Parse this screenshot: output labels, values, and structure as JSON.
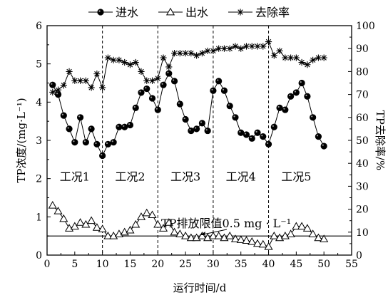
{
  "chart_data": {
    "type": "line",
    "xlabel": "运行时间/d",
    "ylabel_left": "TP浓度/(mg·L⁻¹)",
    "ylabel_right": "TP去除率/%",
    "xlim": [
      0,
      55
    ],
    "ylim_left": [
      0,
      6
    ],
    "ylim_right": [
      0,
      100
    ],
    "xticks": [
      0,
      5,
      10,
      15,
      20,
      25,
      30,
      35,
      40,
      45,
      50,
      55
    ],
    "yticks_left": [
      0,
      1,
      2,
      3,
      4,
      5,
      6
    ],
    "yticks_right": [
      0,
      10,
      20,
      30,
      40,
      50,
      60,
      70,
      80,
      90,
      100
    ],
    "legend": {
      "position": "top",
      "entries": [
        "进水",
        "出水",
        "去除率"
      ]
    },
    "series": [
      {
        "name": "进水",
        "axis": "left",
        "marker": "filled-circle",
        "x": [
          1,
          2,
          3,
          4,
          5,
          6,
          7,
          8,
          9,
          10,
          11,
          12,
          13,
          14,
          15,
          16,
          17,
          18,
          19,
          20,
          21,
          22,
          23,
          24,
          25,
          26,
          27,
          28,
          29,
          30,
          31,
          32,
          33,
          34,
          35,
          36,
          37,
          38,
          39,
          40,
          41,
          42,
          43,
          44,
          45,
          46,
          47,
          48,
          49,
          50
        ],
        "values": [
          4.45,
          4.2,
          3.65,
          3.3,
          2.95,
          3.6,
          2.95,
          3.3,
          2.9,
          2.6,
          2.9,
          2.95,
          3.35,
          3.35,
          3.4,
          3.85,
          4.25,
          4.35,
          4.1,
          3.8,
          4.45,
          4.75,
          4.55,
          3.95,
          3.55,
          3.25,
          3.3,
          3.45,
          3.25,
          4.3,
          4.55,
          4.3,
          3.9,
          3.6,
          3.2,
          3.15,
          3.05,
          3.2,
          3.1,
          2.9,
          3.35,
          3.85,
          3.8,
          4.15,
          4.25,
          4.5,
          4.15,
          3.6,
          3.1,
          2.85
        ]
      },
      {
        "name": "出水",
        "axis": "left",
        "marker": "open-triangle",
        "x": [
          1,
          2,
          3,
          4,
          5,
          6,
          7,
          8,
          9,
          10,
          11,
          12,
          13,
          14,
          15,
          16,
          17,
          18,
          19,
          20,
          21,
          22,
          23,
          24,
          25,
          26,
          27,
          28,
          29,
          30,
          31,
          32,
          33,
          34,
          35,
          36,
          37,
          38,
          39,
          40,
          41,
          42,
          43,
          44,
          45,
          46,
          47,
          48,
          49,
          50
        ],
        "values": [
          1.3,
          1.15,
          0.95,
          0.7,
          0.75,
          0.85,
          0.8,
          0.9,
          0.72,
          0.68,
          0.5,
          0.5,
          0.55,
          0.6,
          0.65,
          0.8,
          1.0,
          1.1,
          1.05,
          0.8,
          0.7,
          0.85,
          0.6,
          0.55,
          0.5,
          0.45,
          0.45,
          0.5,
          0.45,
          0.5,
          0.5,
          0.45,
          0.5,
          0.42,
          0.4,
          0.38,
          0.35,
          0.3,
          0.28,
          0.22,
          0.5,
          0.45,
          0.5,
          0.55,
          0.75,
          0.75,
          0.7,
          0.55,
          0.45,
          0.42
        ]
      },
      {
        "name": "去除率",
        "axis": "right",
        "marker": "star",
        "x": [
          1,
          2,
          3,
          4,
          5,
          6,
          7,
          8,
          9,
          10,
          11,
          12,
          13,
          14,
          15,
          16,
          17,
          18,
          19,
          20,
          21,
          22,
          23,
          24,
          25,
          26,
          27,
          28,
          29,
          30,
          31,
          32,
          33,
          34,
          35,
          36,
          37,
          38,
          39,
          40,
          41,
          42,
          43,
          44,
          45,
          46,
          47,
          48,
          49,
          50
        ],
        "values": [
          71,
          72,
          74,
          80,
          76,
          76,
          76,
          73,
          79,
          73,
          86,
          85,
          85,
          84,
          83,
          84,
          80,
          76,
          76,
          77,
          86,
          82,
          88,
          88,
          88,
          88,
          87,
          88,
          89,
          89,
          90,
          90,
          90,
          91,
          90,
          91,
          91,
          91,
          91,
          93,
          87,
          89,
          86,
          86,
          86,
          84,
          83,
          85,
          86,
          86
        ]
      }
    ],
    "annotations": {
      "limit_line_value": 0.5,
      "limit_label": "TP排放限值0.5 mg · L⁻¹",
      "dividers_x": [
        10,
        20,
        30,
        40
      ],
      "phases": [
        {
          "label": "工况1",
          "x": 5
        },
        {
          "label": "工况2",
          "x": 15
        },
        {
          "label": "工况3",
          "x": 25
        },
        {
          "label": "工况4",
          "x": 35
        },
        {
          "label": "工况5",
          "x": 45
        }
      ]
    }
  }
}
